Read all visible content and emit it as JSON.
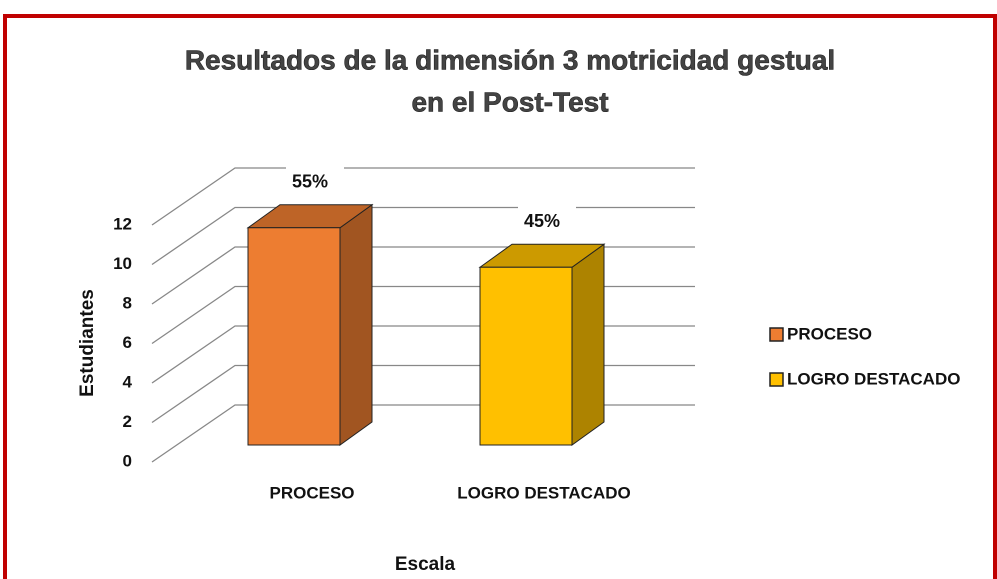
{
  "chart_data": {
    "type": "bar3d",
    "title": [
      "Resultados de la dimensión 3 motricidad gestual",
      "en el Post-Test"
    ],
    "x_label": "Escala",
    "y_label": "Estudiantes",
    "categories": [
      "PROCESO",
      "LOGRO DESTACADO"
    ],
    "series": [
      {
        "name": "PROCESO",
        "color": "#ED7D31"
      },
      {
        "name": "LOGRO DESTACADO",
        "color": "#FFC000"
      }
    ],
    "values": [
      11,
      9
    ],
    "percent_labels": [
      "55%",
      "45%"
    ],
    "ylim": [
      0,
      12
    ],
    "yticks": [
      0,
      2,
      4,
      6,
      8,
      10,
      12
    ],
    "grid": true,
    "legend": "right"
  }
}
